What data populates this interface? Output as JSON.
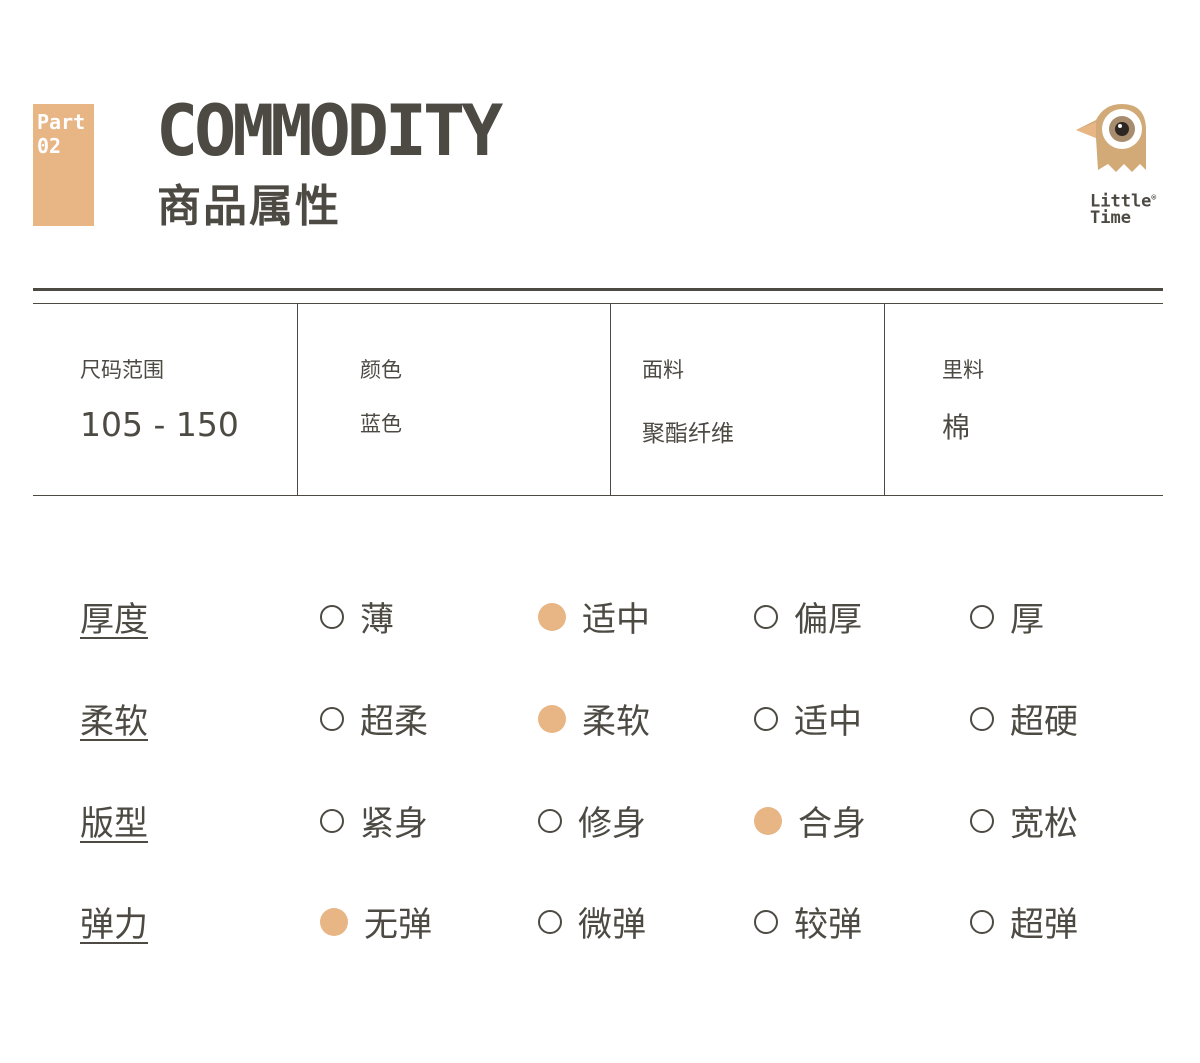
{
  "header": {
    "part_label": "Part",
    "part_number": "02",
    "title_en": "COMMODITY",
    "title_cn": "商品属性",
    "logo_text_line1": "Little",
    "logo_text_line2": "Time",
    "logo_reg": "®"
  },
  "colors": {
    "accent": "#e8b585",
    "text": "#4d4a43",
    "logo": "#d2aa78"
  },
  "specs": [
    {
      "label": "尺码范围",
      "value": "105 - 150"
    },
    {
      "label": "颜色",
      "value": "蓝色"
    },
    {
      "label": "面料",
      "value": "聚酯纤维"
    },
    {
      "label": "里料",
      "value": "棉"
    }
  ],
  "attributes": [
    {
      "label": "厚度",
      "options": [
        "薄",
        "适中",
        "偏厚",
        "厚"
      ],
      "selected": 1
    },
    {
      "label": "柔软",
      "options": [
        "超柔",
        "柔软",
        "适中",
        "超硬"
      ],
      "selected": 1
    },
    {
      "label": "版型",
      "options": [
        "紧身",
        "修身",
        "合身",
        "宽松"
      ],
      "selected": 2
    },
    {
      "label": "弹力",
      "options": [
        "无弹",
        "微弹",
        "较弹",
        "超弹"
      ],
      "selected": 0
    }
  ]
}
